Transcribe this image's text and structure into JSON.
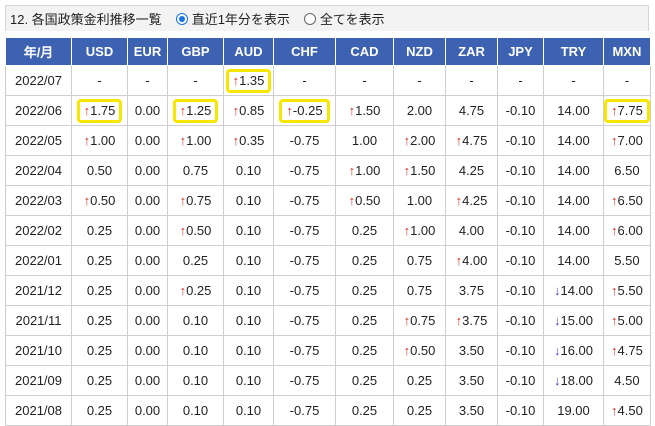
{
  "header": {
    "title": "12. 各国政策金利推移一覧",
    "radio_recent": "直近1年分を表示",
    "radio_all": "全てを表示"
  },
  "columns": [
    "年/月",
    "USD",
    "EUR",
    "GBP",
    "AUD",
    "CHF",
    "CAD",
    "NZD",
    "ZAR",
    "JPY",
    "TRY",
    "MXN"
  ],
  "rows": [
    {
      "date": "2022/07",
      "cells": [
        [
          "-",
          ""
        ],
        [
          "-",
          ""
        ],
        [
          "-",
          ""
        ],
        [
          "1.35",
          "up"
        ],
        [
          "-",
          ""
        ],
        [
          "-",
          ""
        ],
        [
          "-",
          ""
        ],
        [
          "-",
          ""
        ],
        [
          "-",
          ""
        ],
        [
          "-",
          ""
        ],
        [
          "-",
          ""
        ]
      ]
    },
    {
      "date": "2022/06",
      "cells": [
        [
          "1.75",
          "up"
        ],
        [
          "0.00",
          ""
        ],
        [
          "1.25",
          "up"
        ],
        [
          "0.85",
          "up"
        ],
        [
          "-0.25",
          "up"
        ],
        [
          "1.50",
          "up"
        ],
        [
          "2.00",
          ""
        ],
        [
          "4.75",
          ""
        ],
        [
          "-0.10",
          ""
        ],
        [
          "14.00",
          ""
        ],
        [
          "7.75",
          "up"
        ]
      ]
    },
    {
      "date": "2022/05",
      "cells": [
        [
          "1.00",
          "up"
        ],
        [
          "0.00",
          ""
        ],
        [
          "1.00",
          "up"
        ],
        [
          "0.35",
          "up"
        ],
        [
          "-0.75",
          ""
        ],
        [
          "1.00",
          ""
        ],
        [
          "2.00",
          "up"
        ],
        [
          "4.75",
          "up"
        ],
        [
          "-0.10",
          ""
        ],
        [
          "14.00",
          ""
        ],
        [
          "7.00",
          "up"
        ]
      ]
    },
    {
      "date": "2022/04",
      "cells": [
        [
          "0.50",
          ""
        ],
        [
          "0.00",
          ""
        ],
        [
          "0.75",
          ""
        ],
        [
          "0.10",
          ""
        ],
        [
          "-0.75",
          ""
        ],
        [
          "1.00",
          "up"
        ],
        [
          "1.50",
          "up"
        ],
        [
          "4.25",
          ""
        ],
        [
          "-0.10",
          ""
        ],
        [
          "14.00",
          ""
        ],
        [
          "6.50",
          ""
        ]
      ]
    },
    {
      "date": "2022/03",
      "cells": [
        [
          "0.50",
          "up"
        ],
        [
          "0.00",
          ""
        ],
        [
          "0.75",
          "up"
        ],
        [
          "0.10",
          ""
        ],
        [
          "-0.75",
          ""
        ],
        [
          "0.50",
          "up"
        ],
        [
          "1.00",
          ""
        ],
        [
          "4.25",
          "up"
        ],
        [
          "-0.10",
          ""
        ],
        [
          "14.00",
          ""
        ],
        [
          "6.50",
          "up"
        ]
      ]
    },
    {
      "date": "2022/02",
      "cells": [
        [
          "0.25",
          ""
        ],
        [
          "0.00",
          ""
        ],
        [
          "0.50",
          "up"
        ],
        [
          "0.10",
          ""
        ],
        [
          "-0.75",
          ""
        ],
        [
          "0.25",
          ""
        ],
        [
          "1.00",
          "up"
        ],
        [
          "4.00",
          ""
        ],
        [
          "-0.10",
          ""
        ],
        [
          "14.00",
          ""
        ],
        [
          "6.00",
          "up"
        ]
      ]
    },
    {
      "date": "2022/01",
      "cells": [
        [
          "0.25",
          ""
        ],
        [
          "0.00",
          ""
        ],
        [
          "0.25",
          ""
        ],
        [
          "0.10",
          ""
        ],
        [
          "-0.75",
          ""
        ],
        [
          "0.25",
          ""
        ],
        [
          "0.75",
          ""
        ],
        [
          "4.00",
          "up"
        ],
        [
          "-0.10",
          ""
        ],
        [
          "14.00",
          ""
        ],
        [
          "5.50",
          ""
        ]
      ]
    },
    {
      "date": "2021/12",
      "cells": [
        [
          "0.25",
          ""
        ],
        [
          "0.00",
          ""
        ],
        [
          "0.25",
          "up"
        ],
        [
          "0.10",
          ""
        ],
        [
          "-0.75",
          ""
        ],
        [
          "0.25",
          ""
        ],
        [
          "0.75",
          ""
        ],
        [
          "3.75",
          ""
        ],
        [
          "-0.10",
          ""
        ],
        [
          "14.00",
          "down"
        ],
        [
          "5.50",
          "up"
        ]
      ]
    },
    {
      "date": "2021/11",
      "cells": [
        [
          "0.25",
          ""
        ],
        [
          "0.00",
          ""
        ],
        [
          "0.10",
          ""
        ],
        [
          "0.10",
          ""
        ],
        [
          "-0.75",
          ""
        ],
        [
          "0.25",
          ""
        ],
        [
          "0.75",
          "up"
        ],
        [
          "3.75",
          "up"
        ],
        [
          "-0.10",
          ""
        ],
        [
          "15.00",
          "down"
        ],
        [
          "5.00",
          "up"
        ]
      ]
    },
    {
      "date": "2021/10",
      "cells": [
        [
          "0.25",
          ""
        ],
        [
          "0.00",
          ""
        ],
        [
          "0.10",
          ""
        ],
        [
          "0.10",
          ""
        ],
        [
          "-0.75",
          ""
        ],
        [
          "0.25",
          ""
        ],
        [
          "0.50",
          "up"
        ],
        [
          "3.50",
          ""
        ],
        [
          "-0.10",
          ""
        ],
        [
          "16.00",
          "down"
        ],
        [
          "4.75",
          "up"
        ]
      ]
    },
    {
      "date": "2021/09",
      "cells": [
        [
          "0.25",
          ""
        ],
        [
          "0.00",
          ""
        ],
        [
          "0.10",
          ""
        ],
        [
          "0.10",
          ""
        ],
        [
          "-0.75",
          ""
        ],
        [
          "0.25",
          ""
        ],
        [
          "0.25",
          ""
        ],
        [
          "3.50",
          ""
        ],
        [
          "-0.10",
          ""
        ],
        [
          "18.00",
          "down"
        ],
        [
          "4.50",
          ""
        ]
      ]
    },
    {
      "date": "2021/08",
      "cells": [
        [
          "0.25",
          ""
        ],
        [
          "0.00",
          ""
        ],
        [
          "0.10",
          ""
        ],
        [
          "0.10",
          ""
        ],
        [
          "-0.75",
          ""
        ],
        [
          "0.25",
          ""
        ],
        [
          "0.25",
          ""
        ],
        [
          "3.50",
          ""
        ],
        [
          "-0.10",
          ""
        ],
        [
          "19.00",
          ""
        ],
        [
          "4.50",
          "up"
        ]
      ]
    }
  ],
  "highlighted": [
    [
      0,
      4
    ],
    [
      1,
      1
    ],
    [
      1,
      3
    ],
    [
      1,
      5
    ],
    [
      1,
      11
    ]
  ],
  "arrows": {
    "up": "↑",
    "down": "↓"
  },
  "colors": {
    "header_bg": "#3d62b1",
    "up": "#d93025",
    "down": "#5a3fc7",
    "highlight": "#f7e600"
  }
}
